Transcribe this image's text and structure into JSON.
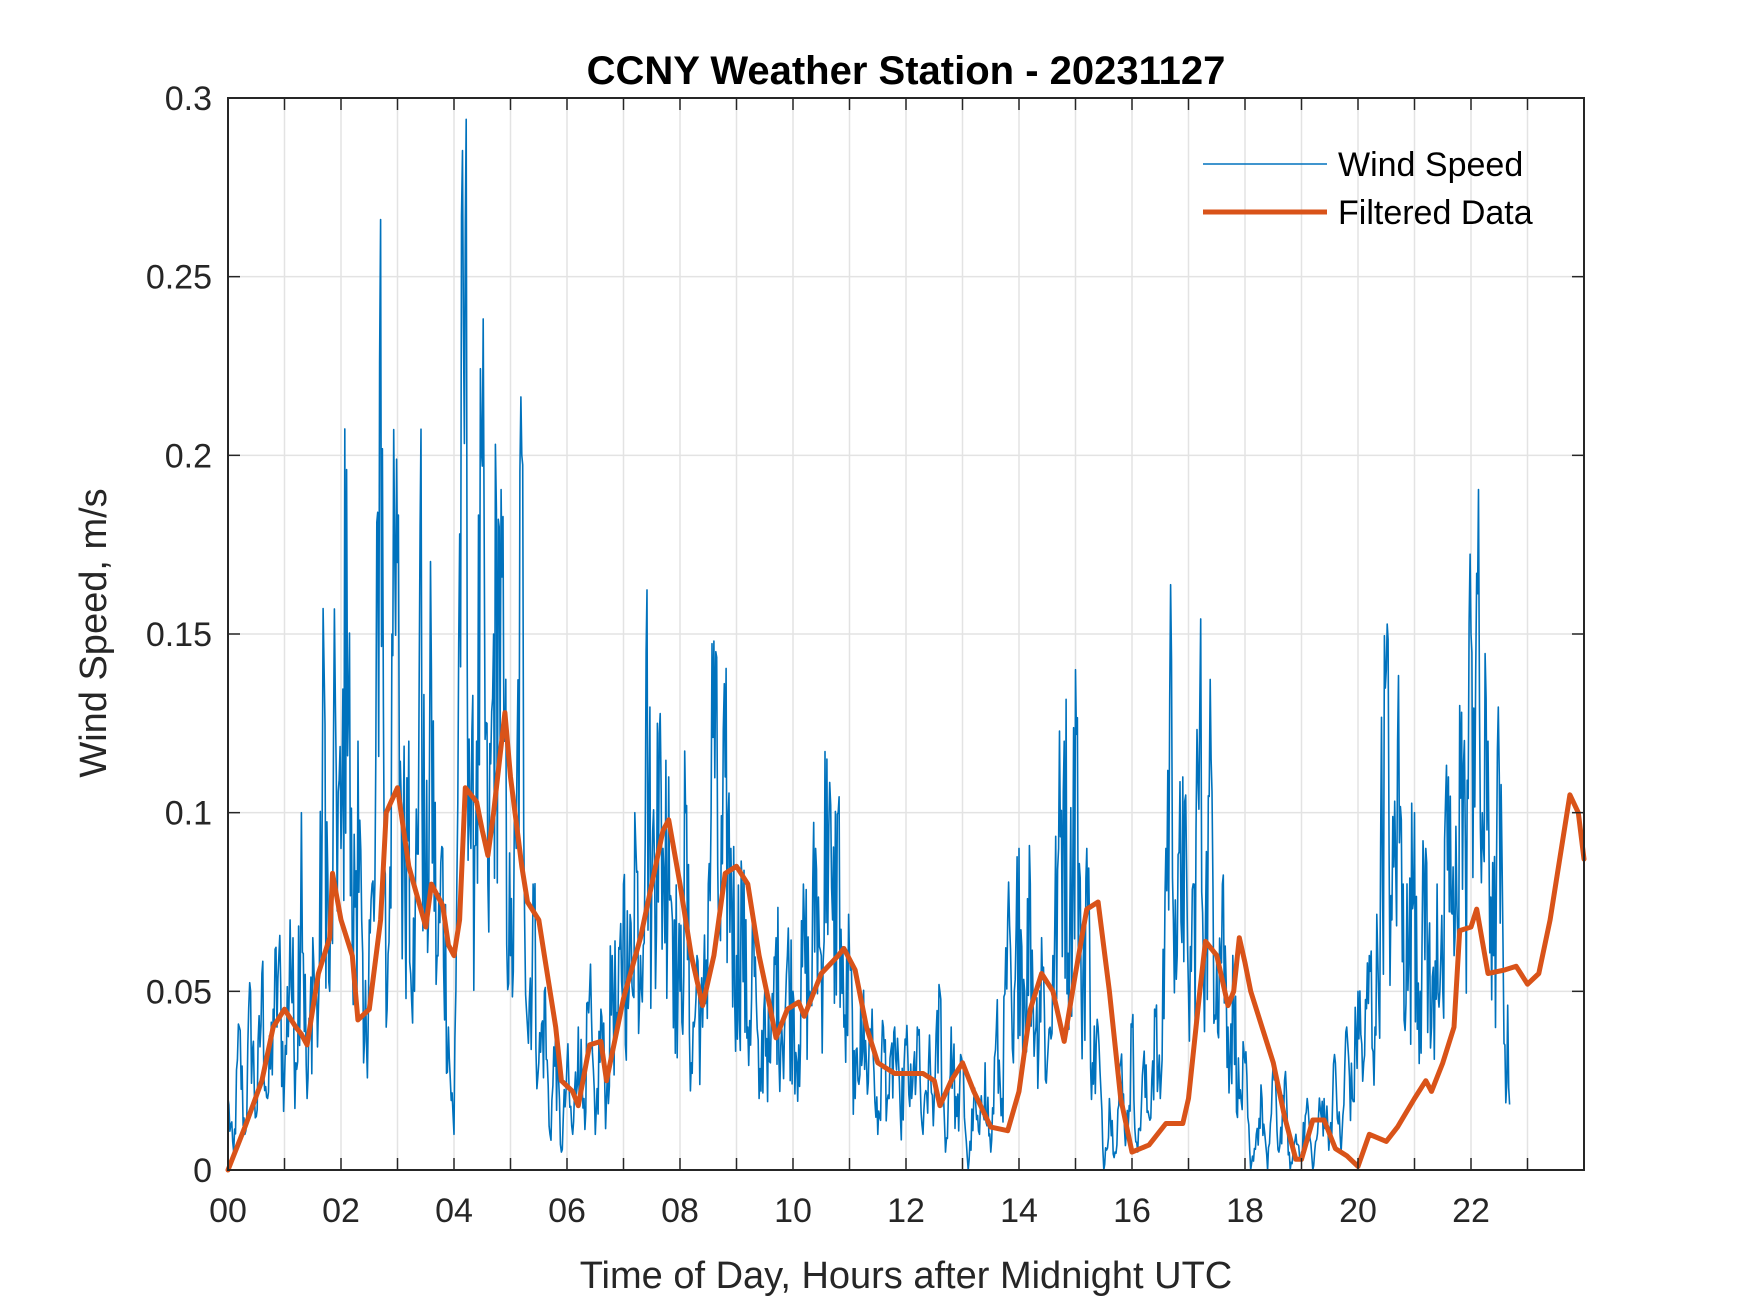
{
  "chart_data": {
    "type": "line",
    "title": "CCNY Weather Station - 20231127",
    "xlabel": "Time of Day, Hours after Midnight UTC",
    "ylabel": "Wind Speed, m/s",
    "xlim": [
      0,
      24
    ],
    "ylim": [
      0,
      0.3
    ],
    "grid": true,
    "legend_position": "top-right",
    "x_ticks": [
      0,
      2,
      4,
      6,
      8,
      10,
      12,
      14,
      16,
      18,
      20,
      22
    ],
    "x_tick_labels": [
      "00",
      "02",
      "04",
      "06",
      "08",
      "10",
      "12",
      "14",
      "16",
      "18",
      "20",
      "22"
    ],
    "x_minor_grid_step_hours": 1,
    "y_ticks": [
      0,
      0.05,
      0.1,
      0.15,
      0.2,
      0.25,
      0.3
    ],
    "y_tick_labels": [
      "0",
      "0.05",
      "0.1",
      "0.15",
      "0.2",
      "0.25",
      "0.3"
    ],
    "series": [
      {
        "name": "Wind Speed",
        "color": "#0072BD",
        "note": "high-frequency raw samples; values listed every 0.1 h",
        "x_start": 0,
        "x_step": 0.1,
        "values": [
          0.02,
          0.005,
          0.04,
          0.01,
          0.05,
          0.015,
          0.055,
          0.02,
          0.045,
          0.06,
          0.025,
          0.07,
          0.03,
          0.1,
          0.02,
          0.065,
          0.045,
          0.14,
          0.05,
          0.13,
          0.09,
          0.196,
          0.06,
          0.12,
          0.03,
          0.07,
          0.08,
          0.266,
          0.04,
          0.15,
          0.17,
          0.09,
          0.12,
          0.05,
          0.18,
          0.07,
          0.14,
          0.06,
          0.09,
          0.04,
          0.01,
          0.178,
          0.265,
          0.09,
          0.12,
          0.197,
          0.08,
          0.15,
          0.18,
          0.12,
          0.06,
          0.09,
          0.2,
          0.04,
          0.08,
          0.03,
          0.05,
          0.01,
          0.04,
          0.005,
          0.03,
          0.01,
          0.04,
          0.02,
          0.05,
          0.01,
          0.045,
          0.02,
          0.06,
          0.04,
          0.08,
          0.05,
          0.1,
          0.06,
          0.145,
          0.08,
          0.125,
          0.09,
          0.11,
          0.07,
          0.05,
          0.1,
          0.03,
          0.06,
          0.04,
          0.08,
          0.148,
          0.07,
          0.11,
          0.09,
          0.06,
          0.08,
          0.04,
          0.07,
          0.02,
          0.05,
          0.03,
          0.065,
          0.04,
          0.06,
          0.05,
          0.035,
          0.07,
          0.05,
          0.09,
          0.06,
          0.115,
          0.07,
          0.1,
          0.04,
          0.06,
          0.02,
          0.05,
          0.03,
          0.045,
          0.01,
          0.04,
          0.02,
          0.04,
          0.015,
          0.035,
          0.02,
          0.04,
          0.01,
          0.03,
          0.02,
          0.05,
          0.005,
          0.04,
          0.015,
          0.03,
          0.0,
          0.02,
          0.01,
          0.03,
          0.005,
          0.04,
          0.02,
          0.07,
          0.03,
          0.09,
          0.05,
          0.08,
          0.04,
          0.065,
          0.03,
          0.06,
          0.09,
          0.12,
          0.07,
          0.14,
          0.05,
          0.09,
          0.03,
          0.04,
          0.0,
          0.02,
          0.005,
          0.03,
          0.01,
          0.04,
          0.005,
          0.03,
          0.015,
          0.045,
          0.02,
          0.09,
          0.143,
          0.06,
          0.11,
          0.05,
          0.08,
          0.13,
          0.07,
          0.115,
          0.06,
          0.08,
          0.04,
          0.05,
          0.02,
          0.03,
          0.0,
          0.01,
          0.02,
          0.0,
          0.03,
          0.005,
          0.025,
          0.0,
          0.01,
          0.005,
          0.02,
          0.0,
          0.015,
          0.02,
          0.01,
          0.03,
          0.005,
          0.04,
          0.02,
          0.05,
          0.03,
          0.06,
          0.04,
          0.09,
          0.14,
          0.07,
          0.12,
          0.08,
          0.06,
          0.1,
          0.05,
          0.09,
          0.04,
          0.08,
          0.05,
          0.11,
          0.06,
          0.13,
          0.09,
          0.15,
          0.167,
          0.1,
          0.12,
          0.06,
          0.11,
          0.035
        ]
      },
      {
        "name": "Filtered Data",
        "color": "#D95319",
        "x": [
          0,
          0.3,
          0.6,
          0.8,
          1.0,
          1.2,
          1.3,
          1.4,
          1.6,
          1.8,
          1.85,
          2.0,
          2.2,
          2.3,
          2.5,
          2.7,
          2.8,
          3.0,
          3.2,
          3.5,
          3.6,
          3.8,
          3.9,
          4.0,
          4.1,
          4.2,
          4.4,
          4.5,
          4.6,
          4.7,
          4.9,
          5.0,
          5.2,
          5.3,
          5.5,
          5.6,
          5.8,
          5.9,
          6.1,
          6.2,
          6.4,
          6.6,
          6.7,
          7.0,
          7.3,
          7.5,
          7.7,
          7.8,
          8.0,
          8.2,
          8.4,
          8.6,
          8.8,
          9.0,
          9.2,
          9.4,
          9.6,
          9.7,
          9.9,
          10.1,
          10.2,
          10.5,
          10.8,
          10.9,
          11.1,
          11.3,
          11.5,
          11.8,
          12.0,
          12.3,
          12.5,
          12.6,
          12.8,
          13.0,
          13.2,
          13.5,
          13.8,
          14.0,
          14.2,
          14.4,
          14.6,
          14.8,
          15.0,
          15.2,
          15.4,
          15.6,
          15.8,
          16.0,
          16.3,
          16.6,
          16.9,
          17.0,
          17.2,
          17.3,
          17.5,
          17.7,
          17.8,
          17.9,
          18.0,
          18.1,
          18.3,
          18.5,
          18.7,
          18.9,
          19.0,
          19.2,
          19.4,
          19.6,
          19.8,
          20.0,
          20.2,
          20.5,
          20.7,
          21.0,
          21.2,
          21.3,
          21.5,
          21.7,
          21.8,
          22.0,
          22.1,
          22.3,
          22.6,
          22.8,
          23.0,
          23.2,
          23.4,
          23.6,
          23.75,
          23.9,
          24.0
        ],
        "values": [
          0.0,
          0.012,
          0.025,
          0.04,
          0.045,
          0.04,
          0.038,
          0.035,
          0.055,
          0.065,
          0.083,
          0.07,
          0.06,
          0.042,
          0.045,
          0.07,
          0.1,
          0.107,
          0.085,
          0.068,
          0.08,
          0.074,
          0.063,
          0.06,
          0.07,
          0.107,
          0.103,
          0.095,
          0.088,
          0.1,
          0.128,
          0.11,
          0.085,
          0.075,
          0.07,
          0.06,
          0.04,
          0.025,
          0.022,
          0.018,
          0.035,
          0.036,
          0.025,
          0.048,
          0.065,
          0.08,
          0.095,
          0.098,
          0.08,
          0.06,
          0.046,
          0.06,
          0.083,
          0.085,
          0.08,
          0.06,
          0.045,
          0.037,
          0.045,
          0.047,
          0.043,
          0.055,
          0.06,
          0.062,
          0.056,
          0.04,
          0.03,
          0.027,
          0.027,
          0.027,
          0.025,
          0.018,
          0.025,
          0.03,
          0.022,
          0.012,
          0.011,
          0.022,
          0.045,
          0.055,
          0.05,
          0.036,
          0.055,
          0.073,
          0.075,
          0.05,
          0.02,
          0.005,
          0.007,
          0.013,
          0.013,
          0.02,
          0.05,
          0.064,
          0.06,
          0.046,
          0.05,
          0.065,
          0.058,
          0.05,
          0.04,
          0.03,
          0.015,
          0.003,
          0.003,
          0.014,
          0.014,
          0.006,
          0.004,
          0.001,
          0.01,
          0.008,
          0.012,
          0.02,
          0.025,
          0.022,
          0.03,
          0.04,
          0.067,
          0.068,
          0.073,
          0.055,
          0.056,
          0.057,
          0.052,
          0.055,
          0.07,
          0.09,
          0.105,
          0.1,
          0.087
        ]
      }
    ]
  }
}
